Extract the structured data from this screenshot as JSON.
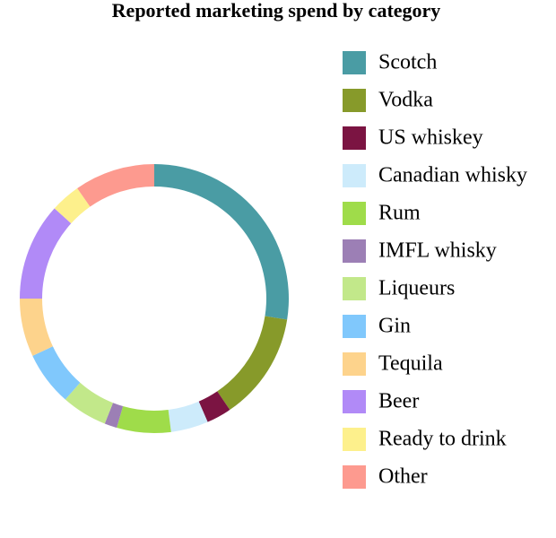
{
  "chart_data": {
    "type": "donut",
    "title": "Reported marketing spend by category",
    "categories": [
      "Scotch",
      "Vodka",
      "US whiskey",
      "Canadian whisky",
      "Rum",
      "IMFL whisky",
      "Liqueurs",
      "Gin",
      "Tequila",
      "Beer",
      "Ready to drink",
      "Other"
    ],
    "values": [
      27.5,
      13,
      3,
      4.5,
      6.5,
      1.5,
      5.5,
      6.5,
      7,
      11.7,
      3.6,
      9.7
    ],
    "colors": [
      "#4a9ca4",
      "#879a2a",
      "#7b1442",
      "#cdebfb",
      "#9fdc4a",
      "#9c7fb5",
      "#c2e88a",
      "#80c8fc",
      "#fdd38c",
      "#b18af7",
      "#fdf08c",
      "#fd9a8f"
    ]
  }
}
